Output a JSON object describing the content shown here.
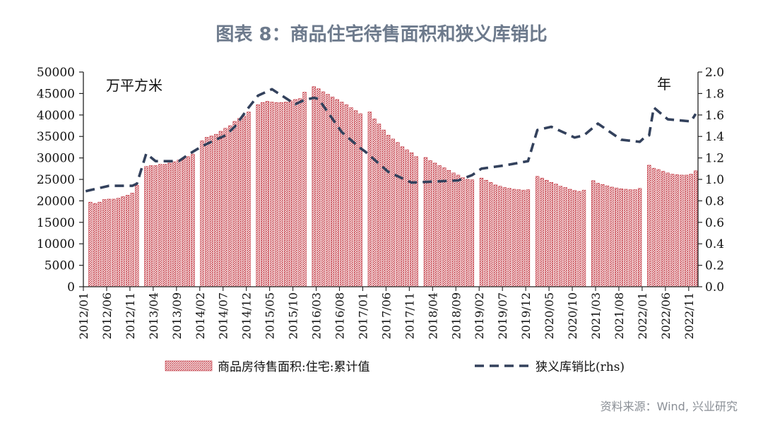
{
  "title": "图表 8：商品住宅待售面积和狭义库销比",
  "source": "资料来源：Wind, 兴业研究",
  "colors": {
    "bar": "#c0303b",
    "line": "#33415c",
    "title": "#6d7a8c"
  },
  "chart_data": {
    "type": "bar+line",
    "left_unit": "万平方米",
    "right_unit": "年",
    "ylim_left": [
      0,
      50000
    ],
    "ylim_right": [
      0.0,
      2.0
    ],
    "yticks_left": [
      "0",
      "5000",
      "10000",
      "15000",
      "20000",
      "25000",
      "30000",
      "35000",
      "40000",
      "45000",
      "50000"
    ],
    "yticks_right": [
      "0.0",
      "0.2",
      "0.4",
      "0.6",
      "0.8",
      "1.0",
      "1.2",
      "1.4",
      "1.6",
      "1.8",
      "2.0"
    ],
    "xtick_labels": [
      "2012/01",
      "2012/06",
      "2012/11",
      "2013/04",
      "2013/09",
      "2014/02",
      "2014/07",
      "2014/12",
      "2015/05",
      "2015/10",
      "2016/03",
      "2016/08",
      "2017/01",
      "2017/06",
      "2017/11",
      "2018/04",
      "2018/09",
      "2019/02",
      "2019/07",
      "2019/12",
      "2020/05",
      "2020/10",
      "2021/03",
      "2021/08",
      "2022/01",
      "2022/06",
      "2022/11"
    ],
    "legend": [
      "商品房待售面积:住宅:累计值",
      "狭义库销比(rhs)"
    ],
    "series": [
      {
        "name": "商品房待售面积:住宅:累计值",
        "kind": "bar",
        "axis": "left",
        "x": [
          "2012/01",
          "2012/02",
          "2012/03",
          "2012/04",
          "2012/05",
          "2012/06",
          "2012/07",
          "2012/08",
          "2012/09",
          "2012/10",
          "2012/11",
          "2012/12",
          "2013/01",
          "2013/02",
          "2013/03",
          "2013/04",
          "2013/05",
          "2013/06",
          "2013/07",
          "2013/08",
          "2013/09",
          "2013/10",
          "2013/11",
          "2013/12",
          "2014/01",
          "2014/02",
          "2014/03",
          "2014/04",
          "2014/05",
          "2014/06",
          "2014/07",
          "2014/08",
          "2014/09",
          "2014/10",
          "2014/11",
          "2014/12",
          "2015/01",
          "2015/02",
          "2015/03",
          "2015/04",
          "2015/05",
          "2015/06",
          "2015/07",
          "2015/08",
          "2015/09",
          "2015/10",
          "2015/11",
          "2015/12",
          "2016/01",
          "2016/02",
          "2016/03",
          "2016/04",
          "2016/05",
          "2016/06",
          "2016/07",
          "2016/08",
          "2016/09",
          "2016/10",
          "2016/11",
          "2016/12",
          "2017/01",
          "2017/02",
          "2017/03",
          "2017/04",
          "2017/05",
          "2017/06",
          "2017/07",
          "2017/08",
          "2017/09",
          "2017/10",
          "2017/11",
          "2017/12",
          "2018/01",
          "2018/02",
          "2018/03",
          "2018/04",
          "2018/05",
          "2018/06",
          "2018/07",
          "2018/08",
          "2018/09",
          "2018/10",
          "2018/11",
          "2018/12",
          "2019/01",
          "2019/02",
          "2019/03",
          "2019/04",
          "2019/05",
          "2019/06",
          "2019/07",
          "2019/08",
          "2019/09",
          "2019/10",
          "2019/11",
          "2019/12",
          "2020/01",
          "2020/02",
          "2020/03",
          "2020/04",
          "2020/05",
          "2020/06",
          "2020/07",
          "2020/08",
          "2020/09",
          "2020/10",
          "2020/11",
          "2020/12",
          "2021/01",
          "2021/02",
          "2021/03",
          "2021/04",
          "2021/05",
          "2021/06",
          "2021/07",
          "2021/08",
          "2021/09",
          "2021/10",
          "2021/11",
          "2021/12",
          "2022/01",
          "2022/02",
          "2022/03",
          "2022/04",
          "2022/05",
          "2022/06",
          "2022/07",
          "2022/08",
          "2022/09",
          "2022/10",
          "2022/11",
          "2022/12"
        ],
        "values": [
          null,
          19700,
          19400,
          19700,
          20300,
          20400,
          20400,
          20600,
          21000,
          21300,
          21800,
          23600,
          null,
          28000,
          28200,
          28200,
          28500,
          28500,
          28800,
          29100,
          29500,
          29900,
          30300,
          30900,
          null,
          34000,
          34800,
          35100,
          35500,
          36200,
          36900,
          37500,
          38500,
          39200,
          39800,
          40700,
          null,
          42400,
          42900,
          43200,
          43000,
          42900,
          42900,
          43000,
          43300,
          43600,
          43800,
          45300,
          null,
          46600,
          46100,
          45400,
          44800,
          44200,
          43600,
          43000,
          42400,
          41700,
          41000,
          40300,
          null,
          40700,
          39100,
          37900,
          36500,
          35300,
          34400,
          33600,
          32600,
          31900,
          31200,
          30300,
          null,
          30100,
          29400,
          28800,
          28200,
          27700,
          27100,
          26500,
          26000,
          25400,
          25000,
          24900,
          null,
          25300,
          24800,
          24300,
          23700,
          23400,
          23100,
          22900,
          22700,
          22600,
          22500,
          22600,
          null,
          25700,
          25300,
          24800,
          24300,
          23900,
          23400,
          23100,
          22700,
          22400,
          22200,
          22500,
          null,
          24700,
          24100,
          23800,
          23500,
          23200,
          23000,
          22800,
          22700,
          22600,
          22600,
          22900,
          null,
          28300,
          27600,
          27300,
          26900,
          26500,
          26200,
          26100,
          26000,
          26000,
          26200,
          27000
        ]
      },
      {
        "name": "狭义库销比(rhs)",
        "kind": "line",
        "axis": "right",
        "x": [
          "2012/01",
          "2012/06",
          "2012/11",
          "2012/12",
          "2013/02",
          "2013/04",
          "2013/09",
          "2013/11",
          "2014/02",
          "2014/07",
          "2014/09",
          "2014/12",
          "2015/02",
          "2015/05",
          "2015/10",
          "2015/12",
          "2016/02",
          "2016/03",
          "2016/08",
          "2016/12",
          "2017/01",
          "2017/06",
          "2017/11",
          "2018/04",
          "2018/09",
          "2018/12",
          "2019/02",
          "2019/07",
          "2019/12",
          "2020/02",
          "2020/05",
          "2020/10",
          "2020/12",
          "2021/03",
          "2021/08",
          "2021/12",
          "2022/01",
          "2022/02",
          "2022/03",
          "2022/06",
          "2022/11",
          "2022/12"
        ],
        "values": [
          0.89,
          0.94,
          0.94,
          0.96,
          1.24,
          1.17,
          1.17,
          1.23,
          1.31,
          1.41,
          1.49,
          1.67,
          1.78,
          1.84,
          1.7,
          1.74,
          1.76,
          1.75,
          1.44,
          1.29,
          1.26,
          1.07,
          0.97,
          0.98,
          0.99,
          1.04,
          1.1,
          1.13,
          1.17,
          1.46,
          1.49,
          1.39,
          1.41,
          1.52,
          1.37,
          1.35,
          1.39,
          1.41,
          1.67,
          1.56,
          1.54,
          1.61
        ]
      }
    ]
  }
}
